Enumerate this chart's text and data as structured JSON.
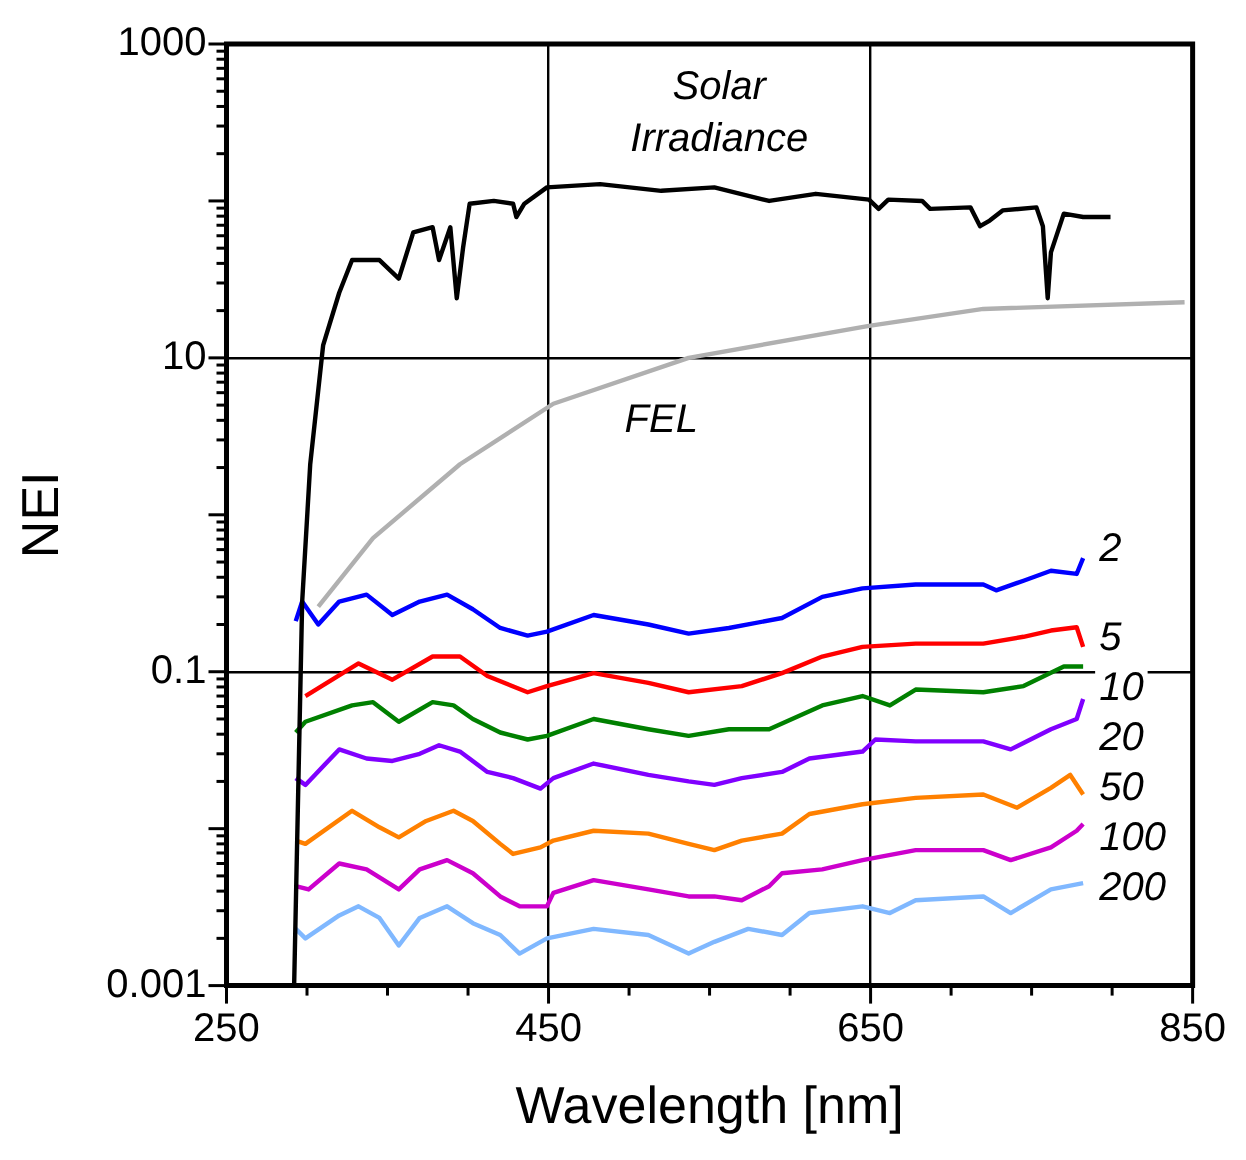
{
  "chart_data": {
    "type": "line",
    "xlabel": "Wavelength [nm]",
    "ylabel": "NEI",
    "log": "y",
    "grid": true,
    "xlim": [
      250,
      850
    ],
    "ylim": [
      0.001,
      1000
    ],
    "xticks": [
      250,
      {
        "value": 300,
        "label": null
      },
      {
        "value": 350,
        "label": null
      },
      {
        "value": 400,
        "label": null
      },
      450,
      {
        "value": 500,
        "label": null
      },
      {
        "value": 550,
        "label": null
      },
      {
        "value": 600,
        "label": null
      },
      650,
      {
        "value": 700,
        "label": null
      },
      {
        "value": 750,
        "label": null
      },
      {
        "value": 800,
        "label": null
      },
      850
    ],
    "yticks": [
      0.001,
      {
        "value": 0.002,
        "label": null
      },
      {
        "value": 0.003,
        "label": null
      },
      {
        "value": 0.004,
        "label": null
      },
      {
        "value": 0.005,
        "label": null
      },
      {
        "value": 0.006,
        "label": null
      },
      {
        "value": 0.007,
        "label": null
      },
      {
        "value": 0.008,
        "label": null
      },
      {
        "value": 0.009,
        "label": null
      },
      {
        "value": 0.01,
        "label": null
      },
      {
        "value": 0.02,
        "label": null
      },
      {
        "value": 0.03,
        "label": null
      },
      {
        "value": 0.04,
        "label": null
      },
      {
        "value": 0.05,
        "label": null
      },
      {
        "value": 0.06,
        "label": null
      },
      {
        "value": 0.07,
        "label": null
      },
      {
        "value": 0.08,
        "label": null
      },
      {
        "value": 0.09,
        "label": null
      },
      0.1,
      {
        "value": 0.2,
        "label": null
      },
      {
        "value": 0.3,
        "label": null
      },
      {
        "value": 0.4,
        "label": null
      },
      {
        "value": 0.5,
        "label": null
      },
      {
        "value": 0.6,
        "label": null
      },
      {
        "value": 0.7,
        "label": null
      },
      {
        "value": 0.8,
        "label": null
      },
      {
        "value": 0.9,
        "label": null
      },
      {
        "value": 1,
        "label": null
      },
      {
        "value": 2,
        "label": null
      },
      {
        "value": 3,
        "label": null
      },
      {
        "value": 4,
        "label": null
      },
      {
        "value": 5,
        "label": null
      },
      {
        "value": 6,
        "label": null
      },
      {
        "value": 7,
        "label": null
      },
      {
        "value": 8,
        "label": null
      },
      {
        "value": 9,
        "label": null
      },
      10,
      {
        "value": 20,
        "label": null
      },
      {
        "value": 30,
        "label": null
      },
      {
        "value": 40,
        "label": null
      },
      {
        "value": 50,
        "label": null
      },
      {
        "value": 60,
        "label": null
      },
      {
        "value": 70,
        "label": null
      },
      {
        "value": 80,
        "label": null
      },
      {
        "value": 90,
        "label": null
      },
      {
        "value": 100,
        "label": null
      },
      {
        "value": 200,
        "label": null
      },
      {
        "value": 300,
        "label": null
      },
      {
        "value": 400,
        "label": null
      },
      {
        "value": 500,
        "label": null
      },
      {
        "value": 600,
        "label": null
      },
      {
        "value": 700,
        "label": null
      },
      {
        "value": 800,
        "label": null
      },
      {
        "value": 900,
        "label": null
      },
      1000
    ],
    "series": [
      {
        "name": "Solar Irradiance",
        "color": "#000000",
        "x": [
          292,
          297,
          302,
          310,
          320,
          328,
          345,
          357,
          366,
          378,
          382,
          389,
          393,
          397,
          401,
          416,
          428,
          430,
          435,
          449,
          482,
          520,
          553,
          587,
          616,
          649,
          655,
          661,
          682,
          687,
          712,
          718,
          724,
          732,
          753,
          757,
          760,
          762,
          770,
          782,
          799
        ],
        "values": [
          0.001,
          0.28,
          2.1,
          12,
          26,
          42,
          42,
          32,
          63,
          68,
          42,
          68,
          24,
          51,
          96,
          100,
          96,
          79,
          96,
          122,
          128,
          116,
          122,
          100,
          111,
          102,
          89,
          102,
          100,
          89,
          91,
          69,
          75,
          87,
          91,
          69,
          24,
          47,
          83,
          79,
          79
        ]
      },
      {
        "name": "FEL",
        "color": "#b0b0b0",
        "x": [
          307,
          341,
          395,
          453,
          537,
          649,
          720,
          845
        ],
        "values": [
          0.26,
          0.71,
          2.1,
          5.1,
          10,
          16,
          20.5,
          22.6
        ]
      },
      {
        "name": "2",
        "color": "#0000ff",
        "x": [
          293,
          297,
          307,
          320,
          337,
          353,
          370,
          387,
          403,
          420,
          437,
          449,
          478,
          512,
          537,
          562,
          595,
          620,
          645,
          678,
          720,
          728,
          745,
          762,
          778,
          782
        ],
        "values": [
          0.21,
          0.28,
          0.2,
          0.28,
          0.31,
          0.23,
          0.28,
          0.31,
          0.25,
          0.19,
          0.17,
          0.18,
          0.23,
          0.2,
          0.175,
          0.19,
          0.22,
          0.3,
          0.34,
          0.36,
          0.36,
          0.33,
          0.38,
          0.44,
          0.42,
          0.53
        ]
      },
      {
        "name": "5",
        "color": "#ff0000",
        "x": [
          299,
          332,
          353,
          378,
          395,
          412,
          437,
          449,
          478,
          512,
          537,
          570,
          595,
          620,
          645,
          678,
          720,
          745,
          762,
          778,
          782
        ],
        "values": [
          0.07,
          0.113,
          0.089,
          0.125,
          0.125,
          0.094,
          0.074,
          0.081,
          0.098,
          0.085,
          0.074,
          0.081,
          0.098,
          0.125,
          0.144,
          0.151,
          0.151,
          0.167,
          0.183,
          0.192,
          0.144
        ]
      },
      {
        "name": "10",
        "color": "#008000",
        "x": [
          293,
          299,
          328,
          341,
          357,
          378,
          391,
          403,
          420,
          437,
          449,
          478,
          512,
          537,
          562,
          587,
          620,
          645,
          662,
          678,
          720,
          745,
          770,
          782
        ],
        "values": [
          0.041,
          0.048,
          0.061,
          0.064,
          0.048,
          0.064,
          0.061,
          0.05,
          0.041,
          0.037,
          0.039,
          0.05,
          0.043,
          0.039,
          0.043,
          0.043,
          0.061,
          0.07,
          0.061,
          0.077,
          0.074,
          0.081,
          0.108,
          0.108
        ]
      },
      {
        "name": "20",
        "color": "#8000ff",
        "x": [
          293,
          299,
          320,
          337,
          353,
          370,
          382,
          395,
          412,
          428,
          445,
          453,
          478,
          512,
          537,
          553,
          570,
          595,
          612,
          645,
          653,
          678,
          720,
          737,
          762,
          778,
          782
        ],
        "values": [
          0.021,
          0.019,
          0.032,
          0.028,
          0.027,
          0.03,
          0.034,
          0.031,
          0.023,
          0.021,
          0.018,
          0.021,
          0.026,
          0.022,
          0.02,
          0.019,
          0.021,
          0.023,
          0.028,
          0.031,
          0.037,
          0.036,
          0.036,
          0.032,
          0.043,
          0.05,
          0.067
        ]
      },
      {
        "name": "50",
        "color": "#ff8000",
        "x": [
          293,
          299,
          328,
          345,
          357,
          374,
          391,
          403,
          420,
          428,
          445,
          453,
          478,
          512,
          537,
          553,
          570,
          595,
          612,
          645,
          678,
          720,
          741,
          762,
          774,
          782
        ],
        "values": [
          0.0084,
          0.008,
          0.013,
          0.0102,
          0.0088,
          0.0112,
          0.013,
          0.0112,
          0.008,
          0.0069,
          0.0076,
          0.0084,
          0.0097,
          0.0093,
          0.008,
          0.0073,
          0.0084,
          0.0093,
          0.0124,
          0.0143,
          0.0157,
          0.0165,
          0.0136,
          0.0182,
          0.022,
          0.0165
        ]
      },
      {
        "name": "100",
        "color": "#cc00cc",
        "x": [
          293,
          301,
          320,
          337,
          357,
          370,
          387,
          403,
          420,
          432,
          449,
          453,
          478,
          512,
          537,
          553,
          570,
          587,
          595,
          620,
          645,
          678,
          720,
          737,
          762,
          778,
          782
        ],
        "values": [
          0.0043,
          0.0041,
          0.006,
          0.0055,
          0.0041,
          0.0055,
          0.0063,
          0.0052,
          0.0037,
          0.0032,
          0.0032,
          0.0039,
          0.0047,
          0.0041,
          0.0037,
          0.0037,
          0.0035,
          0.0043,
          0.0052,
          0.0055,
          0.0063,
          0.0073,
          0.0073,
          0.0063,
          0.0076,
          0.0097,
          0.0107
        ]
      },
      {
        "name": "200",
        "color": "#80b8ff",
        "x": [
          293,
          299,
          320,
          332,
          345,
          357,
          370,
          387,
          403,
          420,
          432,
          449,
          478,
          512,
          537,
          553,
          574,
          595,
          612,
          645,
          662,
          678,
          720,
          737,
          762,
          782
        ],
        "values": [
          0.0023,
          0.002,
          0.0028,
          0.0032,
          0.0027,
          0.0018,
          0.0027,
          0.0032,
          0.0025,
          0.0021,
          0.0016,
          0.002,
          0.0023,
          0.0021,
          0.0016,
          0.0019,
          0.0023,
          0.0021,
          0.0029,
          0.0032,
          0.0029,
          0.0035,
          0.0037,
          0.0029,
          0.0041,
          0.0045
        ]
      }
    ]
  }
}
